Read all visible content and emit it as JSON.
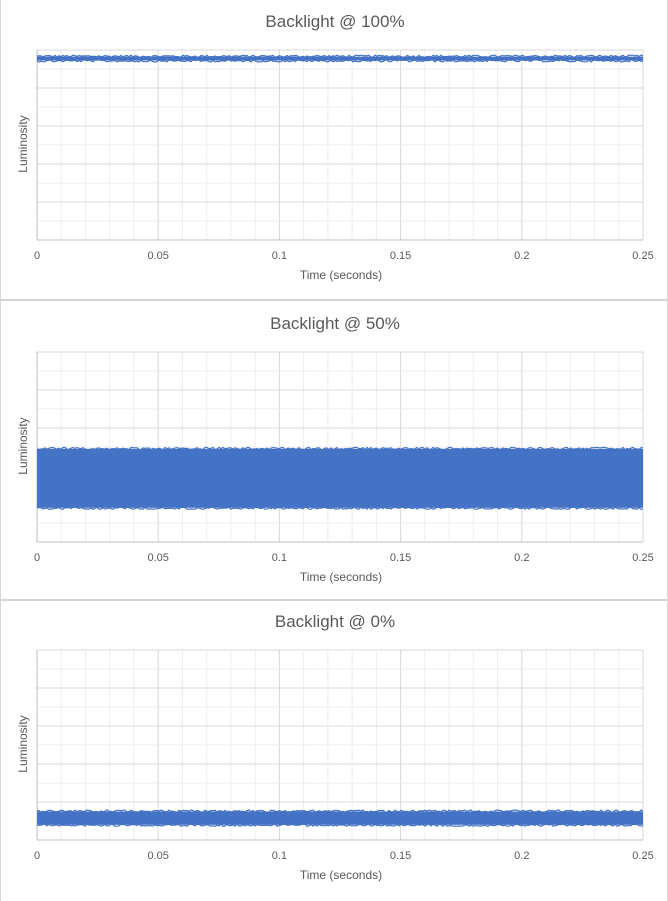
{
  "chart_data": [
    {
      "type": "line",
      "title": "Backlight @ 100%",
      "xlabel": "Time (seconds)",
      "ylabel": "Luminosity",
      "xlim": [
        0,
        0.25
      ],
      "x_ticks": [
        "0",
        "0.05",
        "0.1",
        "0.15",
        "0.2",
        "0.25"
      ],
      "ylim": [
        0,
        100
      ],
      "grid": true,
      "series": [
        {
          "color": "#4472c4",
          "x_range": [
            0,
            0.25
          ],
          "y_low": 94.5,
          "y_high": 96.5
        }
      ]
    },
    {
      "type": "line",
      "title": "Backlight @ 50%",
      "xlabel": "Time (seconds)",
      "ylabel": "Luminosity",
      "xlim": [
        0,
        0.25
      ],
      "x_ticks": [
        "0",
        "0.05",
        "0.1",
        "0.15",
        "0.2",
        "0.25"
      ],
      "ylim": [
        0,
        100
      ],
      "grid": true,
      "series": [
        {
          "color": "#4472c4",
          "x_range": [
            0,
            0.25
          ],
          "y_low": 18,
          "y_high": 49
        }
      ]
    },
    {
      "type": "line",
      "title": "Backlight @ 0%",
      "xlabel": "Time (seconds)",
      "ylabel": "Luminosity",
      "xlim": [
        0,
        0.25
      ],
      "x_ticks": [
        "0",
        "0.05",
        "0.1",
        "0.15",
        "0.2",
        "0.25"
      ],
      "ylim": [
        0,
        100
      ],
      "grid": true,
      "series": [
        {
          "color": "#4472c4",
          "x_range": [
            0,
            0.25
          ],
          "y_low": 8,
          "y_high": 15
        }
      ]
    }
  ]
}
